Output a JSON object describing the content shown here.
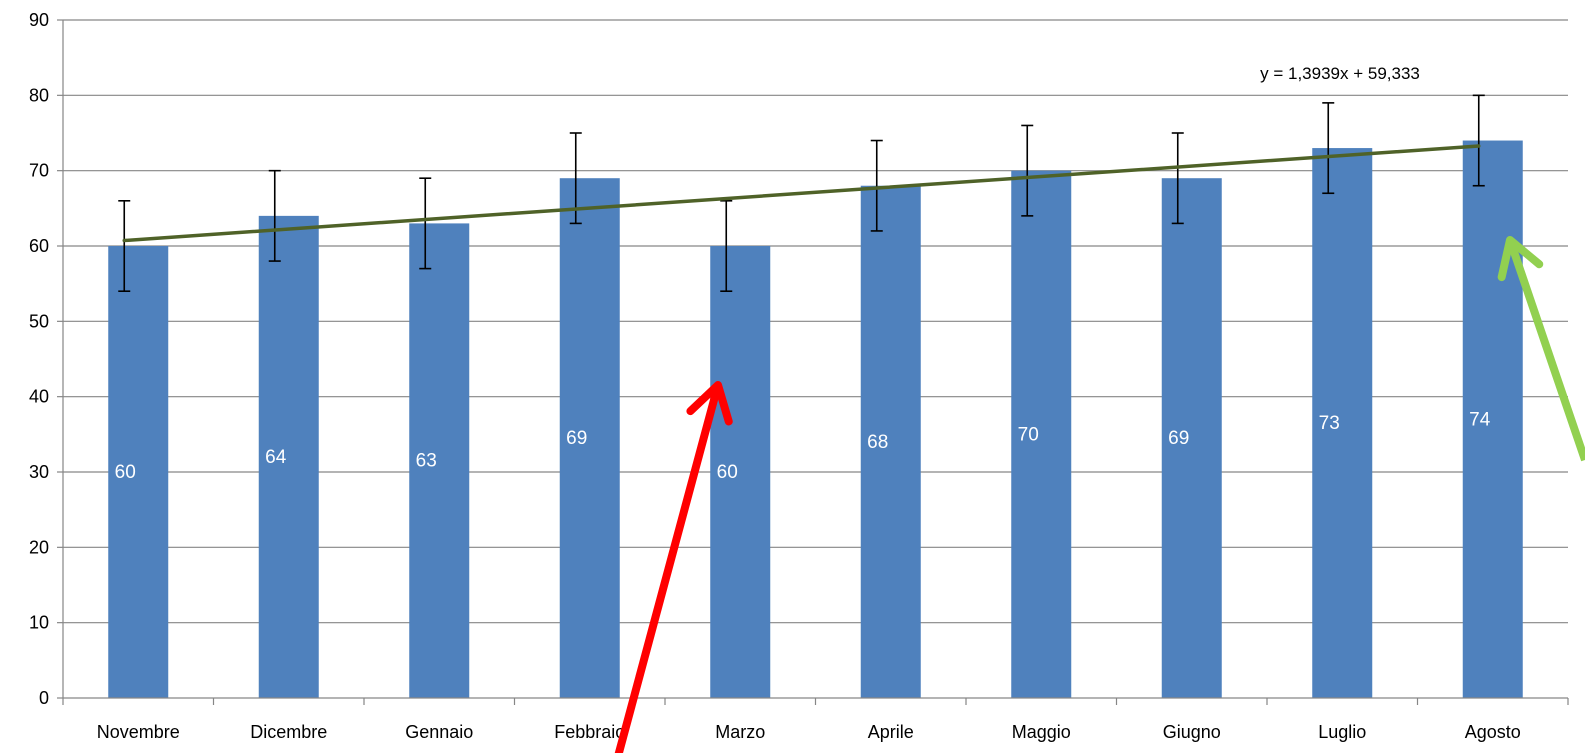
{
  "chart_data": {
    "type": "bar",
    "title": "",
    "xlabel": "",
    "ylabel": "",
    "ylim": [
      0,
      90
    ],
    "yticks": [
      0,
      10,
      20,
      30,
      40,
      50,
      60,
      70,
      80,
      90
    ],
    "grid": true,
    "legend": "none",
    "categories": [
      "Novembre",
      "Dicembre",
      "Gennaio",
      "Febbraio",
      "Marzo",
      "Aprile",
      "Maggio",
      "Giugno",
      "Luglio",
      "Agosto"
    ],
    "values": [
      60,
      64,
      63,
      69,
      60,
      68,
      70,
      69,
      73,
      74
    ],
    "data_labels": [
      "60",
      "64",
      "63",
      "69",
      "60",
      "68",
      "70",
      "69",
      "73",
      "74"
    ],
    "error_bars": {
      "minus": 6,
      "plus": 6
    },
    "trendline": {
      "type": "linear",
      "slope": 1.3939,
      "intercept": 59.333,
      "equation_label": "y = 1,3939x + 59,333"
    },
    "annotations": [
      {
        "shape": "arrow",
        "color": "red",
        "points_to": "Marzo"
      },
      {
        "shape": "arrow",
        "color": "light-green",
        "points_to": "Agosto"
      }
    ],
    "colors": {
      "bar": "#4f81bd",
      "bar_label": "#ffffff",
      "trendline": "#4f6228",
      "gridline": "#868686",
      "axis": "#868686",
      "error_bar": "#000000",
      "arrow_red": "#ff0000",
      "arrow_green": "#92d050"
    }
  }
}
